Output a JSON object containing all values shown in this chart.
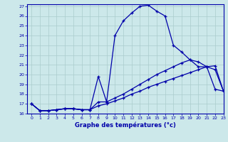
{
  "xlabel": "Graphe des températures (°c)",
  "xlim": [
    -0.5,
    23
  ],
  "ylim": [
    16,
    27.2
  ],
  "yticks": [
    16,
    17,
    18,
    19,
    20,
    21,
    22,
    23,
    24,
    25,
    26,
    27
  ],
  "xticks": [
    0,
    1,
    2,
    3,
    4,
    5,
    6,
    7,
    8,
    9,
    10,
    11,
    12,
    13,
    14,
    15,
    16,
    17,
    18,
    19,
    20,
    21,
    22,
    23
  ],
  "bg_color": "#cce8ea",
  "grid_color": "#aacccc",
  "line_color": "#0000aa",
  "line1_x": [
    0,
    1,
    2,
    3,
    4,
    5,
    6,
    7,
    8,
    9,
    10,
    11,
    12,
    13,
    14,
    15,
    16,
    17,
    18,
    19,
    20,
    21,
    22,
    23
  ],
  "line1_y": [
    17.0,
    16.3,
    16.3,
    16.4,
    16.5,
    16.5,
    16.4,
    16.4,
    19.8,
    17.2,
    24.0,
    25.5,
    26.3,
    27.0,
    27.1,
    26.5,
    26.0,
    23.0,
    22.3,
    21.5,
    20.8,
    20.8,
    20.9,
    18.3
  ],
  "line2_x": [
    0,
    1,
    2,
    3,
    4,
    5,
    6,
    7,
    8,
    9,
    10,
    11,
    12,
    13,
    14,
    15,
    16,
    17,
    18,
    19,
    20,
    21,
    22,
    23
  ],
  "line2_y": [
    17.0,
    16.3,
    16.3,
    16.4,
    16.5,
    16.5,
    16.4,
    16.4,
    17.2,
    17.2,
    17.6,
    18.0,
    18.5,
    19.0,
    19.5,
    20.0,
    20.4,
    20.8,
    21.2,
    21.5,
    21.3,
    20.8,
    20.5,
    18.3
  ],
  "line3_x": [
    0,
    1,
    2,
    3,
    4,
    5,
    6,
    7,
    8,
    9,
    10,
    11,
    12,
    13,
    14,
    15,
    16,
    17,
    18,
    19,
    20,
    21,
    22,
    23
  ],
  "line3_y": [
    17.0,
    16.3,
    16.3,
    16.4,
    16.5,
    16.5,
    16.4,
    16.4,
    16.8,
    17.0,
    17.3,
    17.6,
    18.0,
    18.3,
    18.7,
    19.0,
    19.3,
    19.6,
    19.9,
    20.2,
    20.5,
    20.8,
    18.5,
    18.3
  ]
}
